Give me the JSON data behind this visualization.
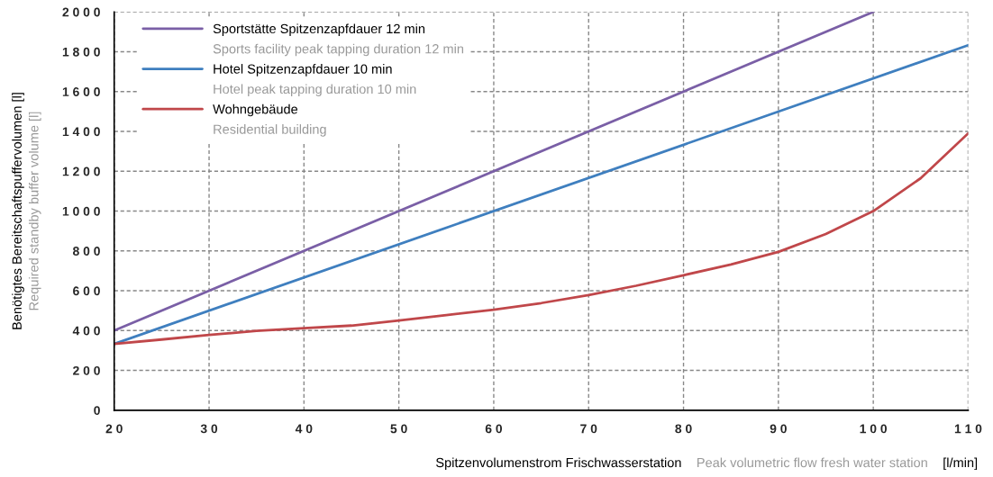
{
  "chart_data": {
    "type": "line",
    "xlabel": "Spitzenvolumenstrom Frischwasserstation\nPeak volumetric flow fresh water station\n[l/min]",
    "ylabel": "Benötigtes Bereitschaftspuffervolumen [l]\nRequired standby buffer volume [l]",
    "xlim": [
      20,
      110
    ],
    "xticks": [
      20,
      30,
      40,
      50,
      60,
      70,
      80,
      90,
      100,
      110
    ],
    "ylim": [
      0,
      2000
    ],
    "yticks": [
      0,
      200,
      400,
      600,
      800,
      1000,
      1200,
      1400,
      1600,
      1800,
      2000
    ],
    "grid": true,
    "legend": "top left",
    "line_style": "solid",
    "marker": "none",
    "series": [
      {
        "name": "Sportstätte Spitzenzapfdauer 12 min\nSports facility peak tapping duration 12 min",
        "color": "#7a5fa6",
        "x": [
          20,
          100
        ],
        "values": [
          400,
          2000
        ]
      },
      {
        "name": "Hotel Spitzenzapfdauer 10 min\nHotel peak tapping duration 10 min",
        "color": "#3f7fbf",
        "x": [
          20,
          110
        ],
        "values": [
          333,
          1833
        ]
      },
      {
        "name": "Wohngebäude\nResidential building",
        "color": "#c0474a",
        "x": [
          20,
          25,
          30,
          35,
          40,
          45,
          50,
          55,
          60,
          65,
          70,
          75,
          80,
          85,
          90,
          95,
          100,
          105,
          110
        ],
        "values": [
          333,
          355,
          378,
          398,
          412,
          425,
          450,
          478,
          505,
          538,
          578,
          625,
          678,
          732,
          795,
          885,
          1000,
          1165,
          1390
        ]
      }
    ]
  }
}
